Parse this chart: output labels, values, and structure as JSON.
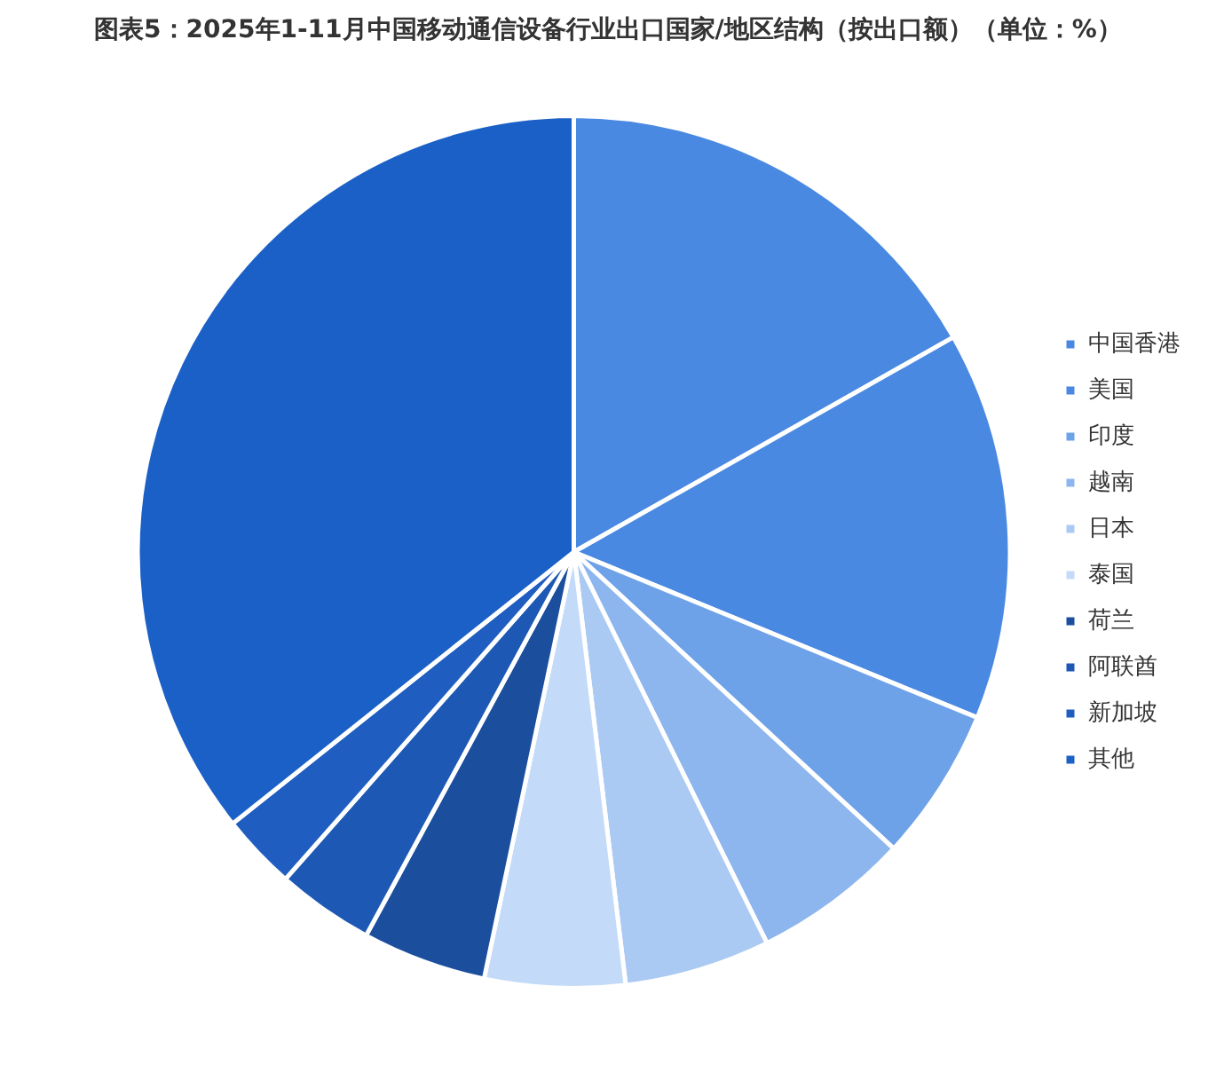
{
  "chart_data": {
    "type": "pie",
    "title": "图表5：2025年1-11月中国移动通信设备行业出口国家/地区结构（按出口额）（单位：%）",
    "categories": [
      "中国香港",
      "美国",
      "印度",
      "越南",
      "日本",
      "泰国",
      "荷兰",
      "阿联酋",
      "新加坡",
      "其他"
    ],
    "values": [
      16.8,
      14.4,
      5.7,
      5.8,
      5.4,
      5.2,
      4.6,
      3.6,
      2.8,
      35.7
    ],
    "colors": [
      "#4a89e2",
      "#4a89e2",
      "#6ea2e8",
      "#8db6ef",
      "#aac9f3",
      "#c3dbf8",
      "#1b4f9e",
      "#1d59b4",
      "#1f5ec0",
      "#1b60c6"
    ],
    "legend": "right"
  }
}
